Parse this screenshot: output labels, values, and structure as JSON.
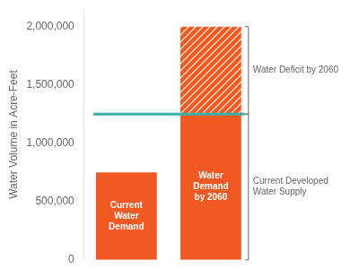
{
  "chart_data": {
    "type": "bar",
    "categories": [
      "Current\nWater\nDemand",
      "Water\nDemand\nby 2060"
    ],
    "series": [
      {
        "color": "#F05A22",
        "values": [
          750000,
          1250000
        ],
        "annotation": "Current Developed\nWater Supply"
      },
      {
        "color": "#F05A22",
        "values": [
          null,
          750000
        ],
        "annotation": "Water Deficit by 2060"
      }
    ],
    "stacked": true,
    "lines": [
      {
        "value": 1250000,
        "color": "#3AAFA9"
      }
    ],
    "ylabel": "Water Volume in Acre-Feet",
    "ylim": [
      0,
      2150000
    ],
    "yticks": [
      0,
      {
        "value": 500000,
        "label": "500,000"
      },
      {
        "value": 1000000,
        "label": "1,000,000"
      },
      {
        "value": 1500000,
        "label": "1,500,000"
      },
      {
        "value": 2000000,
        "label": "2,000,000"
      }
    ],
    "grid": false,
    "tick_labels": "y"
  }
}
